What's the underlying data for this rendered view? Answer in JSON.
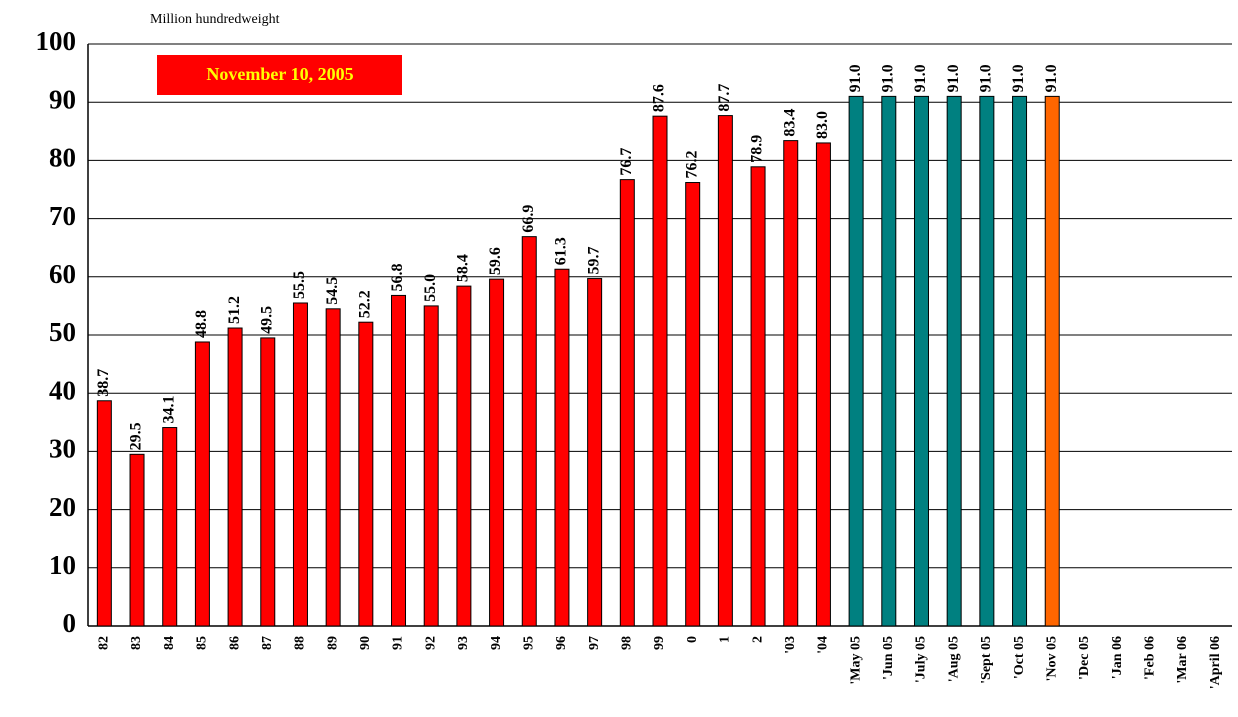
{
  "chart_data": {
    "type": "bar",
    "title": "Million hundredweight",
    "annotation": "November 10, 2005",
    "categories": [
      "82",
      "83",
      "84",
      "85",
      "86",
      "87",
      "88",
      "89",
      "90",
      "91",
      "92",
      "93",
      "94",
      "95",
      "96",
      "97",
      "98",
      "99",
      "0",
      "1",
      "2",
      "'03",
      "'04",
      "'May 05",
      "'Jun 05",
      "'July 05",
      "'Aug 05",
      "'Sept 05",
      "'Oct 05",
      "'Nov 05",
      "'Dec 05",
      "'Jan 06",
      "'Feb 06",
      "'Mar 06",
      "'April 06"
    ],
    "values": [
      38.7,
      29.5,
      34.1,
      48.8,
      51.2,
      49.5,
      55.5,
      54.5,
      52.2,
      56.8,
      55.0,
      58.4,
      59.6,
      66.9,
      61.3,
      59.7,
      76.7,
      87.6,
      76.2,
      87.7,
      78.9,
      83.4,
      83.0,
      91.0,
      91.0,
      91.0,
      91.0,
      91.0,
      91.0,
      91.0,
      null,
      null,
      null,
      null,
      null
    ],
    "value_labels": [
      "38.7",
      "29.5",
      "34.1",
      "48.8",
      "51.2",
      "49.5",
      "55.5",
      "54.5",
      "52.2",
      "56.8",
      "55.0",
      "58.4",
      "59.6",
      "66.9",
      "61.3",
      "59.7",
      "76.7",
      "87.6",
      "76.2",
      "87.7",
      "78.9",
      "83.4",
      "83.0",
      "91.0",
      "91.0",
      "91.0",
      "91.0",
      "91.0",
      "91.0",
      "91.0",
      null,
      null,
      null,
      null,
      null
    ],
    "colors": [
      "#ff0000",
      "#ff0000",
      "#ff0000",
      "#ff0000",
      "#ff0000",
      "#ff0000",
      "#ff0000",
      "#ff0000",
      "#ff0000",
      "#ff0000",
      "#ff0000",
      "#ff0000",
      "#ff0000",
      "#ff0000",
      "#ff0000",
      "#ff0000",
      "#ff0000",
      "#ff0000",
      "#ff0000",
      "#ff0000",
      "#ff0000",
      "#ff0000",
      "#ff0000",
      "#008080",
      "#008080",
      "#008080",
      "#008080",
      "#008080",
      "#008080",
      "#ff6600",
      null,
      null,
      null,
      null,
      null
    ],
    "ylim": [
      0,
      100
    ],
    "yticks": [
      0,
      10,
      20,
      30,
      40,
      50,
      60,
      70,
      80,
      90,
      100
    ],
    "grid": true
  }
}
